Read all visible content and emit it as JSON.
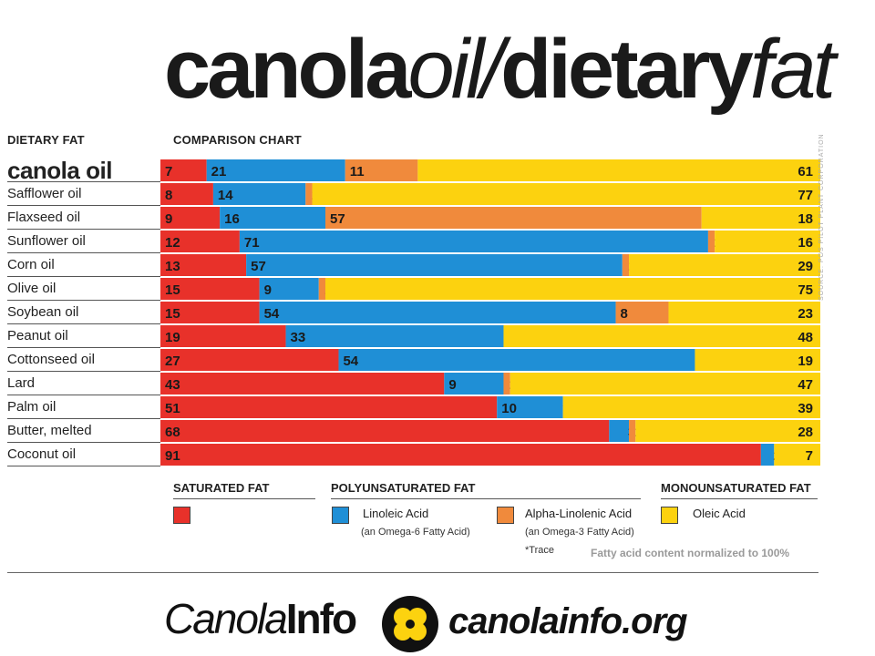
{
  "title": {
    "part1": "canola",
    "part2": "oil/",
    "part3": "dietary",
    "part4": "fat"
  },
  "headers": {
    "left": "DIETARY FAT",
    "right": "COMPARISON CHART"
  },
  "colors": {
    "saturated": "#e8312a",
    "linoleic": "#1f8fd6",
    "alpha_linolenic": "#f08a3c",
    "oleic": "#fcd20f"
  },
  "legend": {
    "saturated_title": "SATURATED FAT",
    "poly_title": "POLYUNSATURATED FAT",
    "mono_title": "MONOUNSATURATED FAT",
    "linoleic": "Linoleic Acid",
    "linoleic_sub": "(an Omega-6 Fatty Acid)",
    "alpha": "Alpha-Linolenic Acid",
    "alpha_sub": "(an Omega-3 Fatty Acid)",
    "trace_note": "*Trace",
    "oleic": "Oleic Acid"
  },
  "normalized_note": "Fatty acid content normalized to 100%",
  "source_note": "SOURCE: POS PILOT PLANT CORPORATION",
  "footer": {
    "brand_italic": "Canola",
    "brand_bold": "Info",
    "site": "canolainfo.org"
  },
  "chart_data": {
    "type": "bar",
    "stacked": true,
    "orientation": "horizontal",
    "title": "canola oil/dietary fat",
    "categories": [
      "canola oil",
      "Safflower oil",
      "Flaxseed oil",
      "Sunflower oil",
      "Corn oil",
      "Olive oil",
      "Soybean oil",
      "Peanut oil",
      "Cottonseed oil",
      "Lard",
      "Palm oil",
      "Butter, melted",
      "Coconut oil"
    ],
    "series": [
      {
        "name": "Saturated Fat",
        "values": [
          7,
          8,
          9,
          12,
          13,
          15,
          15,
          19,
          27,
          43,
          51,
          68,
          91
        ]
      },
      {
        "name": "Linoleic Acid",
        "values": [
          21,
          14,
          16,
          71,
          57,
          9,
          54,
          33,
          54,
          9,
          10,
          3,
          2
        ]
      },
      {
        "name": "Alpha-Linolenic Acid",
        "values": [
          11,
          1,
          57,
          1,
          1,
          1,
          8,
          "*",
          "*",
          1,
          "*",
          1,
          0
        ]
      },
      {
        "name": "Oleic Acid",
        "values": [
          61,
          77,
          18,
          16,
          29,
          75,
          23,
          48,
          19,
          47,
          39,
          28,
          7
        ]
      }
    ],
    "trace_symbol": "*"
  }
}
